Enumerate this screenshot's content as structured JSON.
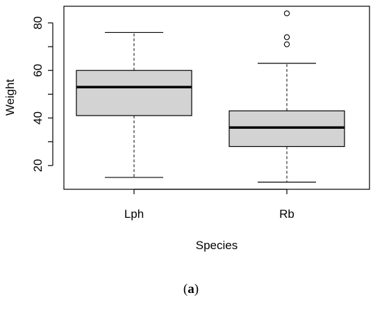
{
  "chart_data": {
    "type": "boxplot",
    "xlabel": "Species",
    "ylabel": "Weight",
    "categories": [
      "Lph",
      "Rb"
    ],
    "ylim": [
      10,
      87
    ],
    "y_ticks": [
      20,
      40,
      60,
      80
    ],
    "grid": false,
    "box_fill": "#d3d3d3",
    "boxes": [
      {
        "label": "Lph",
        "whisker_low": 15,
        "q1": 41,
        "median": 53,
        "q3": 60,
        "whisker_high": 76,
        "outliers": []
      },
      {
        "label": "Rb",
        "whisker_low": 13,
        "q1": 28,
        "median": 36,
        "q3": 43,
        "whisker_high": 63,
        "outliers": [
          71,
          74,
          84
        ]
      }
    ]
  },
  "caption": {
    "open": "(",
    "letter": "a",
    "close": ")"
  }
}
